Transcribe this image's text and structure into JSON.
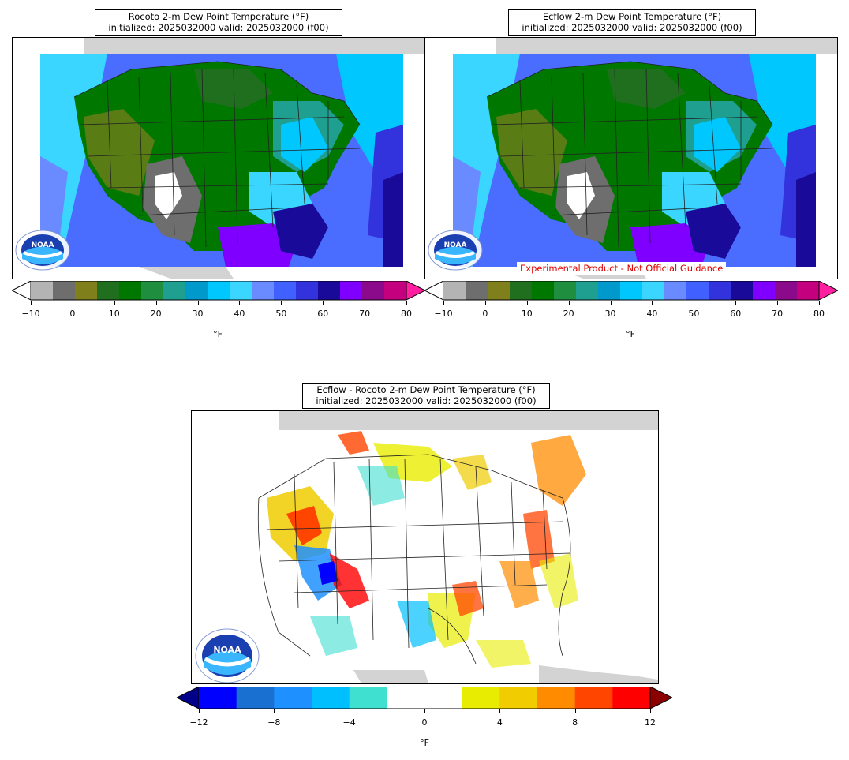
{
  "panels": {
    "rocoto": {
      "title_line1": "Rocoto 2-m Dew Point Temperature (°F)",
      "title_line2": "initialized: 2025032000 valid: 2025032000 (f00)"
    },
    "ecflow": {
      "title_line1": "Ecflow 2-m Dew Point Temperature (°F)",
      "title_line2": "initialized: 2025032000 valid: 2025032000 (f00)",
      "disclaimer": "Experimental Product - Not Official Guidance"
    },
    "diff": {
      "title_line1": "Ecflow - Rocoto 2-m Dew Point Temperature (°F)",
      "title_line2": "initialized: 2025032000 valid: 2025032000 (f00)"
    }
  },
  "colorbar_top": {
    "unit": "°F",
    "ticks": [
      "−10",
      "0",
      "10",
      "20",
      "30",
      "40",
      "50",
      "60",
      "70",
      "80"
    ],
    "colors": [
      "#ffffff",
      "#b4b4b4",
      "#6e6e6e",
      "#7f7f1c",
      "#1f6f1f",
      "#007800",
      "#1f8f3f",
      "#1f9f8f",
      "#0099cc",
      "#00c8ff",
      "#3ad6ff",
      "#6a8aff",
      "#4060ff",
      "#3333dd",
      "#1a0a99",
      "#8000ff",
      "#8b0a8b",
      "#c4007e",
      "#ff1fa0"
    ]
  },
  "colorbar_diff": {
    "unit": "°F",
    "ticks": [
      "−12",
      "−8",
      "−4",
      "0",
      "4",
      "8",
      "12"
    ],
    "colors": [
      "#0000ff",
      "#1a70d0",
      "#1e90ff",
      "#00bfff",
      "#40e0d0",
      "#ffffff",
      "#ffffff",
      "#e8ec00",
      "#f0cc00",
      "#ff8c00",
      "#ff4500",
      "#ff0000"
    ],
    "under": "#00008b",
    "over": "#8b0000"
  },
  "logo": {
    "text": "NOAA",
    "icon": "noaa-logo-icon"
  }
}
